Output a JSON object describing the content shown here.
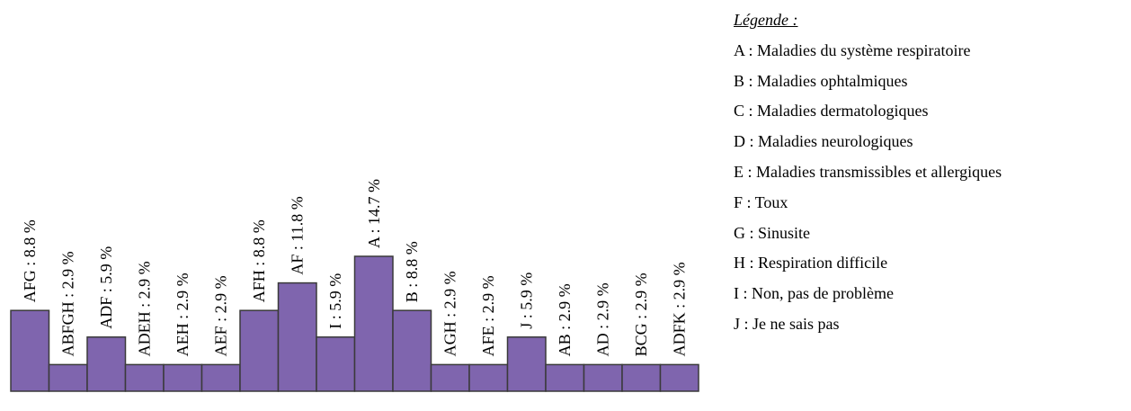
{
  "chart_data": {
    "type": "bar",
    "categories": [
      "AFG",
      "ABFGH",
      "ADF",
      "ADEH",
      "AEH",
      "AEF",
      "AFH",
      "AF",
      "I",
      "A",
      "B",
      "AGH",
      "AFE",
      "J",
      "AB",
      "AD",
      "BCG",
      "ADFK"
    ],
    "values": [
      8.8,
      2.9,
      5.9,
      2.9,
      2.9,
      2.9,
      8.8,
      11.8,
      5.9,
      14.7,
      8.8,
      2.9,
      2.9,
      5.9,
      2.9,
      2.9,
      2.9,
      2.9
    ],
    "labels": [
      "AFG : 8.8 %",
      "ABFGH : 2.9 %",
      "ADF : 5.9 %",
      "ADEH : 2.9 %",
      "AEH : 2.9 %",
      "AEF : 2.9 %",
      "AFH : 8.8 %",
      "AF : 11.8 %",
      "I : 5.9 %",
      "A : 14.7 %",
      "B : 8.8 %",
      "AGH : 2.9 %",
      "AFE : 2.9 %",
      "J : 5.9 %",
      "AB : 2.9 %",
      "AD : 2.9 %",
      "BCG : 2.9 %",
      "ADFK : 2.9 %"
    ],
    "unit": "%",
    "title": "",
    "xlabel": "",
    "ylabel": "",
    "bar_color": "#7f65ae",
    "bar_edge_color": "#3a3a3a",
    "grid": false,
    "legend_position": "right"
  },
  "legend": {
    "title": "Légende :",
    "items": [
      "A : Maladies du système respiratoire",
      "B : Maladies ophtalmiques",
      "C : Maladies dermatologiques",
      "D : Maladies neurologiques",
      "E : Maladies transmissibles et allergiques",
      "F : Toux",
      "G : Sinusite",
      "H : Respiration difficile",
      "I : Non, pas de problème",
      "J : Je ne sais pas"
    ]
  }
}
